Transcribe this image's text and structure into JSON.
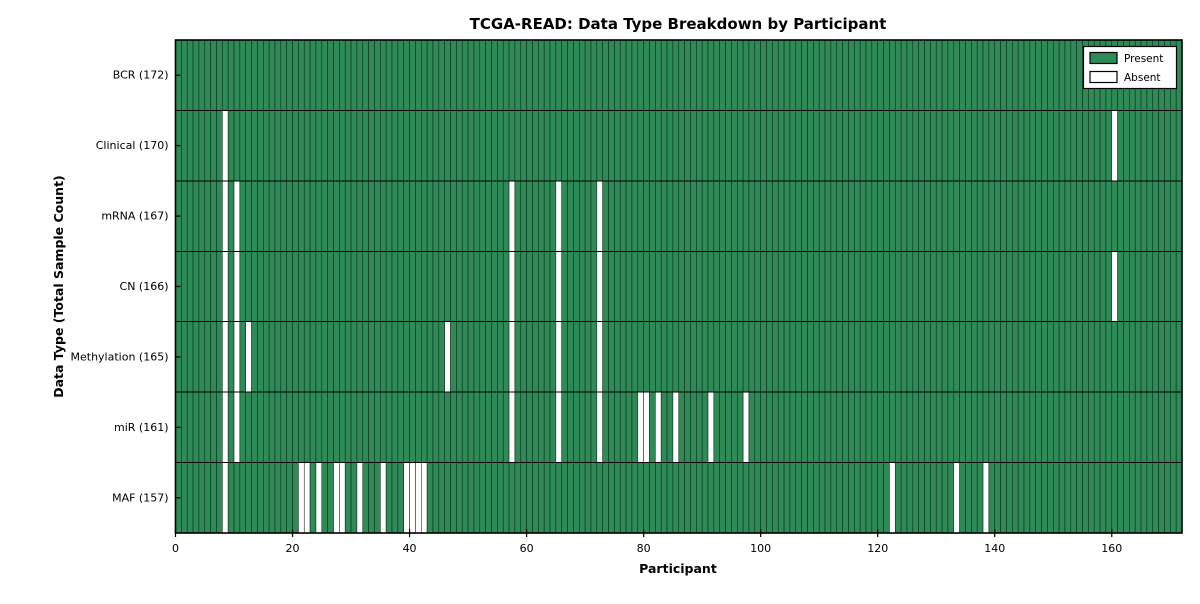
{
  "chart_data": {
    "type": "heatmap",
    "title": "TCGA-READ: Data Type Breakdown by Participant",
    "xlabel": "Participant",
    "ylabel": "Data Type (Total Sample Count)",
    "n_participants": 172,
    "xlim": [
      0,
      172
    ],
    "x_ticks": [
      0,
      20,
      40,
      60,
      80,
      100,
      120,
      140,
      160
    ],
    "legend": {
      "present": "Present",
      "absent": "Absent",
      "position": "upper right"
    },
    "colors": {
      "present": "#2e8b57",
      "absent": "#ffffff",
      "cell_edge": "#0c2616",
      "axis": "#000000"
    },
    "grid": "cell-borders",
    "rows": [
      {
        "label": "BCR (172)",
        "name": "BCR",
        "count": 172,
        "absent_participants": []
      },
      {
        "label": "Clinical (170)",
        "name": "Clinical",
        "count": 170,
        "absent_participants": [
          8,
          160
        ]
      },
      {
        "label": "mRNA (167)",
        "name": "mRNA",
        "count": 167,
        "absent_participants": [
          8,
          10,
          57,
          65,
          72
        ]
      },
      {
        "label": "CN (166)",
        "name": "CN",
        "count": 166,
        "absent_participants": [
          8,
          10,
          57,
          65,
          72,
          160
        ]
      },
      {
        "label": "Methylation (165)",
        "name": "Methylation",
        "count": 165,
        "absent_participants": [
          8,
          10,
          12,
          46,
          57,
          65,
          72
        ]
      },
      {
        "label": "miR (161)",
        "name": "miR",
        "count": 161,
        "absent_participants": [
          8,
          10,
          57,
          65,
          72,
          79,
          80,
          82,
          85,
          91,
          97
        ]
      },
      {
        "label": "MAF (157)",
        "name": "MAF",
        "count": 157,
        "absent_participants": [
          8,
          21,
          22,
          24,
          27,
          28,
          31,
          35,
          39,
          40,
          41,
          42,
          122,
          133,
          138
        ]
      }
    ]
  }
}
